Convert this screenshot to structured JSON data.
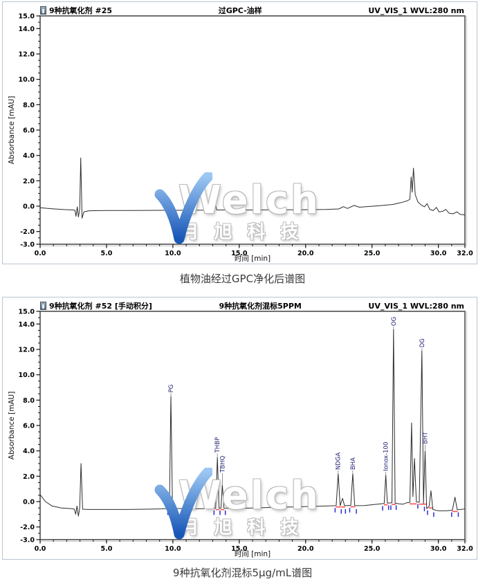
{
  "watermark": {
    "brand": "Welch",
    "cn": "月旭科技",
    "check_color_top": "#9cc7f2",
    "check_color_bottom": "#1857b8"
  },
  "captions": {
    "top": "植物油经过GPC净化后谱图",
    "bottom": "9种抗氧化剂混标5μg/mL谱图"
  },
  "colors": {
    "trace": "#2b2b2b",
    "frame": "#4d4d4d",
    "block_border": "#b9c4d2",
    "peak_label": "#1b1b6e",
    "integration_blue": "#2b2bd6",
    "integration_red": "#ff4d4d"
  },
  "chart_data": [
    {
      "type": "line",
      "header_left": "9种抗氧化剂 #25",
      "header_center": "过GPC-油样",
      "header_right": "UV_VIS_1 WVL:280 nm",
      "xlabel": "时间 [min]",
      "ylabel": "Absorbance [mAU]",
      "xlim": [
        0,
        32
      ],
      "ylim": [
        -3,
        15
      ],
      "x_ticks": [
        0,
        5,
        10,
        15,
        20,
        25,
        30,
        32
      ],
      "y_ticks": [
        15,
        14,
        12,
        10,
        8,
        6,
        4,
        2,
        0,
        -2,
        -3
      ],
      "x_minor_step": 1,
      "y_minor_step": 0.5,
      "grid": false,
      "trace": [
        [
          0,
          -0.12
        ],
        [
          0.9,
          -0.2
        ],
        [
          1.8,
          -0.27
        ],
        [
          2.5,
          -0.3
        ],
        [
          2.62,
          -0.33
        ],
        [
          2.7,
          -0.8
        ],
        [
          2.8,
          -0.05
        ],
        [
          2.88,
          -0.85
        ],
        [
          2.98,
          -0.25
        ],
        [
          3.06,
          3.8
        ],
        [
          3.16,
          -0.95
        ],
        [
          3.3,
          -0.45
        ],
        [
          3.7,
          -0.36
        ],
        [
          5,
          -0.34
        ],
        [
          7,
          -0.34
        ],
        [
          9,
          -0.33
        ],
        [
          11,
          -0.32
        ],
        [
          12.9,
          -0.31
        ],
        [
          13.02,
          0.65
        ],
        [
          13.12,
          -0.28
        ],
        [
          13.2,
          0.12
        ],
        [
          13.3,
          -0.3
        ],
        [
          14.5,
          -0.3
        ],
        [
          16,
          -0.3
        ],
        [
          18,
          -0.29
        ],
        [
          20,
          -0.28
        ],
        [
          21.5,
          -0.26
        ],
        [
          22.5,
          -0.22
        ],
        [
          22.85,
          -0.04
        ],
        [
          23.15,
          -0.18
        ],
        [
          23.65,
          0.06
        ],
        [
          24.05,
          -0.08
        ],
        [
          24.55,
          -0.04
        ],
        [
          25.1,
          0
        ],
        [
          25.6,
          0.04
        ],
        [
          26.1,
          0.09
        ],
        [
          26.6,
          0.14
        ],
        [
          27,
          0.24
        ],
        [
          27.4,
          0.34
        ],
        [
          27.7,
          0.44
        ],
        [
          27.85,
          0.55
        ],
        [
          27.95,
          2.3
        ],
        [
          28.03,
          1.1
        ],
        [
          28.12,
          3.0
        ],
        [
          28.26,
          0.9
        ],
        [
          28.45,
          0.35
        ],
        [
          28.7,
          0.1
        ],
        [
          28.95,
          -0.05
        ],
        [
          29.15,
          0.2
        ],
        [
          29.35,
          -0.25
        ],
        [
          29.6,
          -0.35
        ],
        [
          29.85,
          -0.1
        ],
        [
          30.05,
          -0.45
        ],
        [
          30.35,
          -0.4
        ],
        [
          30.55,
          -0.25
        ],
        [
          30.8,
          -0.55
        ],
        [
          31.1,
          -0.6
        ],
        [
          31.4,
          -0.45
        ],
        [
          31.65,
          -0.65
        ],
        [
          32,
          -0.7
        ]
      ],
      "peaks": [],
      "integration": {
        "blue_ticks": [],
        "red_segments": []
      }
    },
    {
      "type": "line",
      "header_left": "9种抗氧化剂 #52 [手动积分]",
      "header_center": "9种抗氧化剂混标5PPM",
      "header_right": "UV_VIS_1 WVL:280 nm",
      "xlabel": "时间 [min]",
      "ylabel": "Absorbance [mAU]",
      "xlim": [
        0,
        32
      ],
      "ylim": [
        -3,
        15
      ],
      "x_ticks": [
        0,
        5,
        10,
        15,
        20,
        25,
        30,
        32
      ],
      "y_ticks": [
        15,
        14,
        12,
        10,
        8,
        6,
        4,
        2,
        0,
        -2,
        -3
      ],
      "x_minor_step": 1,
      "y_minor_step": 0.5,
      "grid": false,
      "trace": [
        [
          0,
          0.55
        ],
        [
          0.4,
          0
        ],
        [
          0.9,
          -0.35
        ],
        [
          1.6,
          -0.5
        ],
        [
          2.4,
          -0.56
        ],
        [
          2.58,
          -0.6
        ],
        [
          2.68,
          -1.0
        ],
        [
          2.78,
          -0.35
        ],
        [
          2.88,
          -1.15
        ],
        [
          2.98,
          -0.5
        ],
        [
          3.08,
          3.0
        ],
        [
          3.2,
          -0.6
        ],
        [
          3.6,
          -0.62
        ],
        [
          5,
          -0.62
        ],
        [
          6.5,
          -0.62
        ],
        [
          8,
          -0.6
        ],
        [
          9.2,
          -0.57
        ],
        [
          9.6,
          -0.54
        ],
        [
          9.74,
          -0.5
        ],
        [
          9.85,
          8.3
        ],
        [
          9.97,
          -0.48
        ],
        [
          10.3,
          -0.54
        ],
        [
          11.5,
          -0.57
        ],
        [
          12.8,
          -0.55
        ],
        [
          13.22,
          -0.52
        ],
        [
          13.35,
          3.5
        ],
        [
          13.48,
          -0.52
        ],
        [
          13.62,
          -0.52
        ],
        [
          13.73,
          1.3
        ],
        [
          13.85,
          -0.52
        ],
        [
          14.6,
          -0.55
        ],
        [
          16,
          -0.5
        ],
        [
          17.5,
          -0.46
        ],
        [
          19,
          -0.42
        ],
        [
          20.3,
          -0.38
        ],
        [
          21.5,
          -0.35
        ],
        [
          22.3,
          -0.32
        ],
        [
          22.45,
          2.2
        ],
        [
          22.6,
          -0.32
        ],
        [
          22.78,
          0.25
        ],
        [
          22.93,
          -0.32
        ],
        [
          23.4,
          -0.3
        ],
        [
          23.55,
          2.2
        ],
        [
          23.7,
          -0.32
        ],
        [
          24.4,
          -0.31
        ],
        [
          25.1,
          -0.24
        ],
        [
          25.7,
          -0.17
        ],
        [
          25.92,
          -0.15
        ],
        [
          26.04,
          2.1
        ],
        [
          26.16,
          -0.12
        ],
        [
          26.5,
          -0.1
        ],
        [
          26.62,
          13.6
        ],
        [
          26.74,
          -0.12
        ],
        [
          27.05,
          -0.18
        ],
        [
          27.35,
          -0.2
        ],
        [
          27.6,
          -0.1
        ],
        [
          27.85,
          -0.06
        ],
        [
          27.98,
          6.2
        ],
        [
          28.08,
          0.4
        ],
        [
          28.2,
          3.4
        ],
        [
          28.34,
          -0.03
        ],
        [
          28.56,
          -0.05
        ],
        [
          28.76,
          11.9
        ],
        [
          28.88,
          -0.15
        ],
        [
          29.0,
          4.0
        ],
        [
          29.12,
          -0.55
        ],
        [
          29.3,
          -0.38
        ],
        [
          29.44,
          0.85
        ],
        [
          29.58,
          -0.62
        ],
        [
          29.95,
          -0.72
        ],
        [
          30.6,
          -0.72
        ],
        [
          31.05,
          -0.68
        ],
        [
          31.25,
          0.35
        ],
        [
          31.42,
          -0.65
        ],
        [
          32,
          -0.58
        ]
      ],
      "peaks": [
        {
          "name": "PG",
          "x": 9.85,
          "y": 8.3,
          "label_y": 8.6
        },
        {
          "name": "THBP",
          "x": 13.35,
          "y": 3.5,
          "label_y": 3.85
        },
        {
          "name": "TBHQ",
          "x": 13.73,
          "y": 1.3,
          "label_y": 2.3
        },
        {
          "name": "NDGA",
          "x": 22.45,
          "y": 2.2,
          "label_y": 2.5
        },
        {
          "name": "BHA",
          "x": 23.55,
          "y": 2.2,
          "label_y": 2.5
        },
        {
          "name": "Ionox-100",
          "x": 26.04,
          "y": 2.1,
          "label_y": 2.4
        },
        {
          "name": "OG",
          "x": 26.62,
          "y": 13.6,
          "label_y": 13.85
        },
        {
          "name": "DG",
          "x": 28.76,
          "y": 11.9,
          "label_y": 12.15
        },
        {
          "name": "BHT",
          "x": 29.0,
          "y": 4.0,
          "label_y": 4.55
        }
      ],
      "integration": {
        "blue_ticks": [
          [
            9.62,
            -0.7
          ],
          [
            10.12,
            -0.7
          ],
          [
            13.1,
            -0.7
          ],
          [
            13.55,
            -0.7
          ],
          [
            13.95,
            -0.7
          ],
          [
            22.22,
            -0.5
          ],
          [
            22.68,
            -0.6
          ],
          [
            23.0,
            -0.6
          ],
          [
            23.32,
            -0.5
          ],
          [
            23.82,
            -0.6
          ],
          [
            25.8,
            -0.35
          ],
          [
            26.25,
            -0.3
          ],
          [
            26.42,
            -0.3
          ],
          [
            26.82,
            -0.3
          ],
          [
            28.45,
            -0.2
          ],
          [
            28.95,
            -0.4
          ],
          [
            29.18,
            -0.7
          ],
          [
            29.65,
            -0.85
          ],
          [
            31.0,
            -0.85
          ],
          [
            31.5,
            -0.85
          ]
        ],
        "red_segments": [
          [
            9.7,
            10.0,
            -0.52
          ],
          [
            13.22,
            13.5,
            -0.55
          ],
          [
            13.6,
            13.88,
            -0.55
          ],
          [
            22.28,
            22.62,
            -0.34
          ],
          [
            22.65,
            22.97,
            -0.34
          ],
          [
            23.37,
            23.73,
            -0.33
          ],
          [
            25.9,
            26.18,
            -0.17
          ],
          [
            26.48,
            26.78,
            -0.14
          ],
          [
            27.83,
            28.37,
            -0.1
          ],
          [
            28.53,
            29.14,
            -0.12
          ],
          [
            29.28,
            29.6,
            -0.42
          ],
          [
            31.03,
            31.45,
            -0.7
          ]
        ]
      }
    }
  ]
}
